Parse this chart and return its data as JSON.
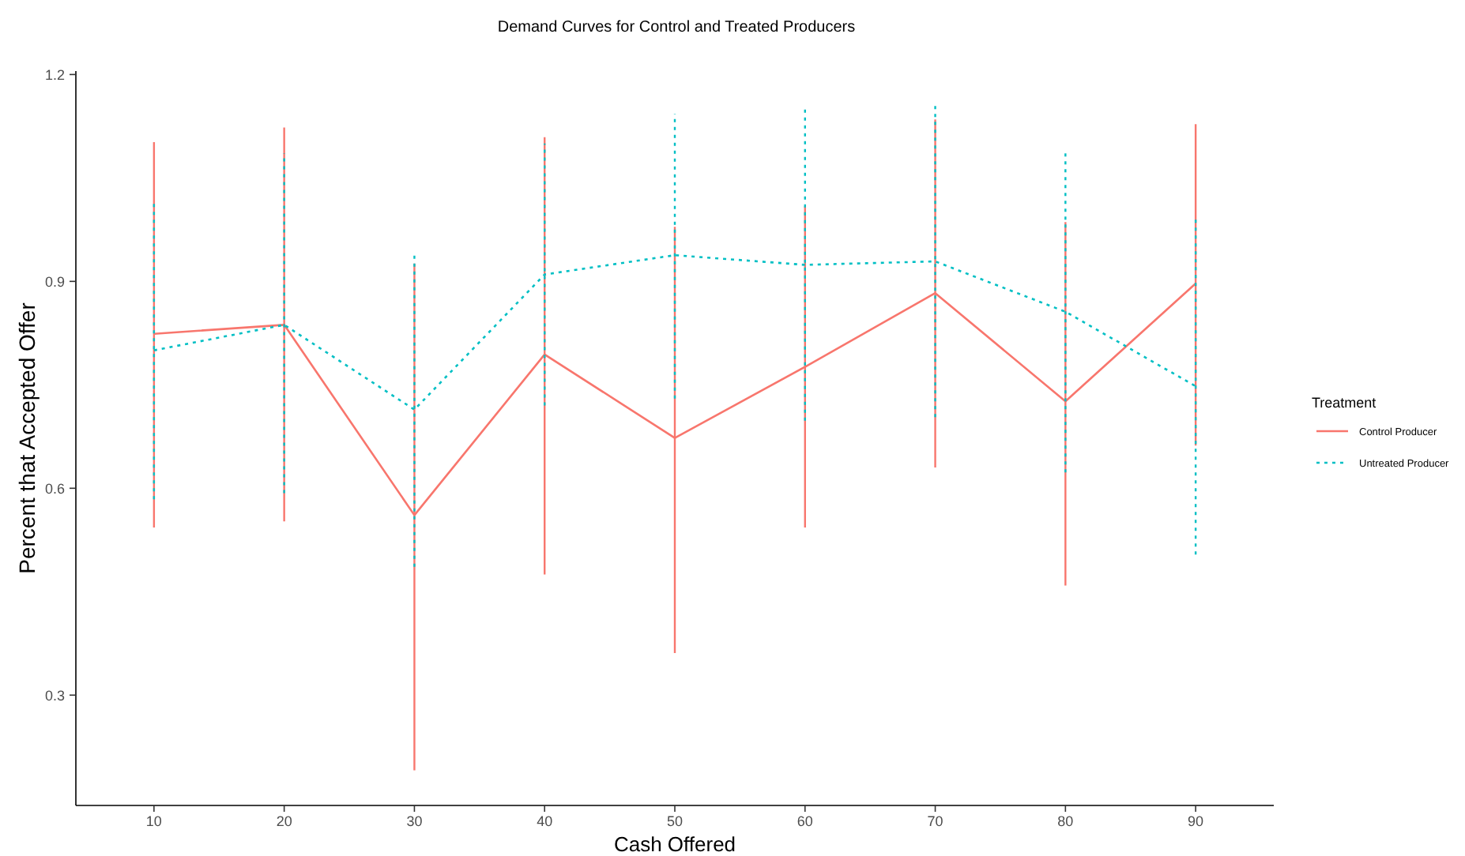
{
  "chart_data": {
    "type": "line",
    "title": "Demand Curves for Control and Treated Producers",
    "xlabel": "Cash Offered",
    "ylabel": "Percent that Accepted Offer",
    "legend_title": "Treatment",
    "legend": "right",
    "grid": false,
    "marker": "none",
    "categories": [
      "10",
      "20",
      "30",
      "40",
      "50",
      "60",
      "70",
      "80",
      "90"
    ],
    "ylim": [
      0.14,
      1.205
    ],
    "yticks": [
      {
        "value": 0.3,
        "label": "0.3"
      },
      {
        "value": 0.6,
        "label": "0.6"
      },
      {
        "value": 0.9,
        "label": "0.9"
      },
      {
        "value": 1.2,
        "label": "1.2"
      }
    ],
    "series": [
      {
        "name": "Control Producer",
        "color": "#f8766d",
        "line_style": "solid",
        "values": [
          0.824,
          0.837,
          0.561,
          0.794,
          0.673,
          0.776,
          0.883,
          0.726,
          0.897
        ],
        "errors": [
          [
            0.543,
            1.102
          ],
          [
            0.552,
            1.123
          ],
          [
            0.191,
            0.926
          ],
          [
            0.475,
            1.109
          ],
          [
            0.361,
            0.979
          ],
          [
            0.543,
            1.009
          ],
          [
            0.63,
            1.135
          ],
          [
            0.459,
            0.986
          ],
          [
            0.662,
            1.128
          ]
        ]
      },
      {
        "name": "Untreated Producer",
        "color": "#00bfc4",
        "line_style": "dotted",
        "values": [
          0.8,
          0.837,
          0.714,
          0.91,
          0.938,
          0.924,
          0.929,
          0.856,
          0.748
        ],
        "errors": [
          [
            0.584,
            1.018
          ],
          [
            0.593,
            1.086
          ],
          [
            0.486,
            0.94
          ],
          [
            0.72,
            1.1
          ],
          [
            0.73,
            1.143
          ],
          [
            0.698,
            1.15
          ],
          [
            0.703,
            1.157
          ],
          [
            0.623,
            1.086
          ],
          [
            0.504,
            0.99
          ]
        ]
      }
    ]
  }
}
